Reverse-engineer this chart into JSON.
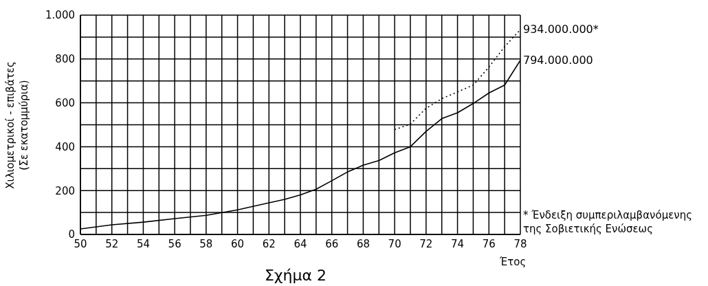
{
  "chart_data": {
    "type": "line",
    "title": "Σχήμα 2",
    "xlabel": "Έτος",
    "ylabel": "Χιλιομετρικοί - επιβάτες\n(Σε εκατομμύρια)",
    "x": [
      50,
      52,
      54,
      56,
      58,
      60,
      62,
      63,
      64,
      65,
      66,
      67,
      68,
      69,
      70,
      71,
      72,
      73,
      74,
      75,
      76,
      77,
      78
    ],
    "series": [
      {
        "color": "#000000",
        "line_style": "solid",
        "values": [
          25,
          44,
          56,
          72,
          87,
          112,
          144,
          160,
          180,
          206,
          245,
          285,
          316,
          337,
          372,
          400,
          470,
          528,
          555,
          597,
          645,
          681,
          794
        ]
      },
      {
        "color": "#000000",
        "line_style": "dotted",
        "x": [
          70,
          71,
          72,
          73,
          74,
          75,
          76,
          77,
          78
        ],
        "values": [
          478,
          503,
          575,
          619,
          650,
          681,
          763,
          856,
          934
        ]
      }
    ],
    "xlim": [
      50,
      78
    ],
    "xticks": [
      50,
      {
        "value": 51,
        "label": null
      },
      52,
      {
        "value": 53,
        "label": null
      },
      54,
      {
        "value": 55,
        "label": null
      },
      56,
      {
        "value": 57,
        "label": null
      },
      58,
      {
        "value": 59,
        "label": null
      },
      60,
      {
        "value": 61,
        "label": null
      },
      62,
      {
        "value": 63,
        "label": null
      },
      64,
      {
        "value": 65,
        "label": null
      },
      66,
      {
        "value": 67,
        "label": null
      },
      68,
      {
        "value": 69,
        "label": null
      },
      70,
      {
        "value": 71,
        "label": null
      },
      72,
      {
        "value": 73,
        "label": null
      },
      74,
      {
        "value": 75,
        "label": null
      },
      76,
      {
        "value": 77,
        "label": null
      },
      78
    ],
    "ylim": [
      0,
      1000
    ],
    "yticks": [
      0,
      {
        "value": 100,
        "label": null
      },
      200,
      {
        "value": 300,
        "label": null
      },
      400,
      {
        "value": 500,
        "label": null
      },
      600,
      {
        "value": 700,
        "label": null
      },
      800,
      {
        "value": 900,
        "label": null
      },
      {
        "value": 1000,
        "label": "1.000"
      }
    ],
    "grid": true,
    "marker": "none",
    "annotations": [
      {
        "text": "934.000.000*",
        "x": 78,
        "y": 934
      },
      {
        "text": "794.000.000",
        "x": 78,
        "y": 794
      },
      "* Ένδειξη συμπεριλαμβανόμενης της Σοβιετικής Ενώσεως"
    ]
  }
}
